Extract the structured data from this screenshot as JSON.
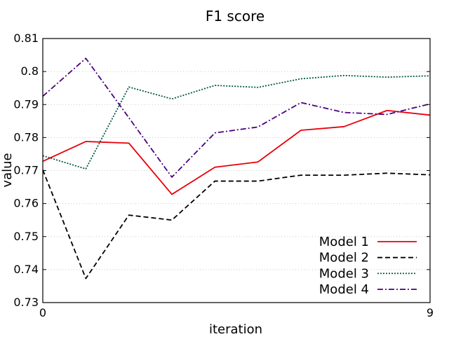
{
  "chart_data": {
    "type": "line",
    "title": "F1 score",
    "xlabel": "iteration",
    "ylabel": "value",
    "x": [
      0,
      1,
      2,
      3,
      4,
      5,
      6,
      7,
      8,
      9
    ],
    "xlim": [
      0,
      9
    ],
    "ylim": [
      0.73,
      0.81
    ],
    "xticks": [
      0,
      9
    ],
    "xtick_labels": [
      "0",
      "9"
    ],
    "yticks": [
      0.73,
      0.74,
      0.75,
      0.76,
      0.77,
      0.78,
      0.79,
      0.8,
      0.81
    ],
    "ytick_labels": [
      "0.73",
      "0.74",
      "0.75",
      "0.76",
      "0.77",
      "0.78",
      "0.79",
      "0.8",
      "0.81"
    ],
    "grid": "horizontal dotted",
    "legend_position": "bottom-right",
    "series": [
      {
        "name": "Model 1",
        "color": "#e8000b",
        "dash": "solid",
        "values": [
          0.7728,
          0.7788,
          0.7783,
          0.7628,
          0.771,
          0.7726,
          0.7822,
          0.7833,
          0.7882,
          0.7868
        ]
      },
      {
        "name": "Model 2",
        "color": "#000000",
        "dash": "dashed",
        "values": [
          0.7702,
          0.7373,
          0.7565,
          0.755,
          0.7668,
          0.7668,
          0.7686,
          0.7686,
          0.7692,
          0.7687
        ]
      },
      {
        "name": "Model 3",
        "color": "#00573c",
        "dash": "dotted",
        "values": [
          0.7745,
          0.7705,
          0.7953,
          0.7917,
          0.7958,
          0.7952,
          0.7978,
          0.7988,
          0.7983,
          0.7987
        ]
      },
      {
        "name": "Model 4",
        "color": "#4b0082",
        "dash": "dashdot",
        "values": [
          0.7925,
          0.804,
          0.786,
          0.768,
          0.7814,
          0.7832,
          0.7906,
          0.7876,
          0.787,
          0.7902
        ]
      }
    ]
  }
}
